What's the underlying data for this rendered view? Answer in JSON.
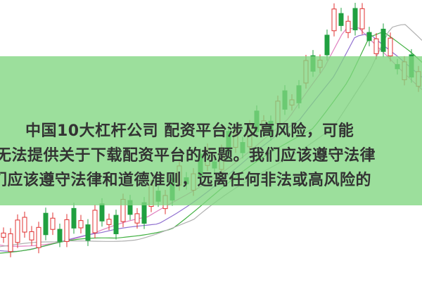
{
  "overlay": {
    "lines": [
      "中国10大杠杆公司 配资平台涉及高风险，可能",
      "无法提供关于下载配资平台的标题。我们应该遵守法律",
      "们应该遵守法律和道德准则，远离任何非法或高风险的"
    ]
  }
}
